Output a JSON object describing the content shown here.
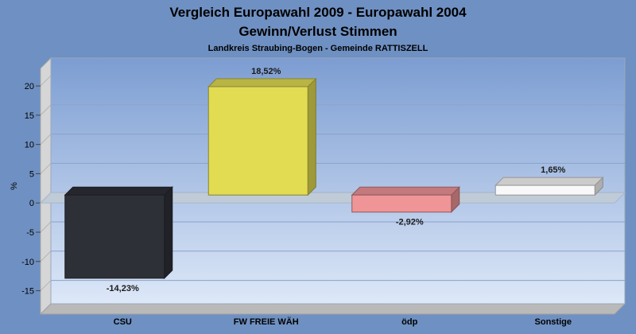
{
  "chart_data": {
    "type": "bar",
    "title": "Vergleich Europawahl 2009 - Europawahl 2004",
    "subtitle": "Gewinn/Verlust Stimmen",
    "subsubtitle": "Landkreis Straubing-Bogen - Gemeinde RATTISZELL",
    "ylabel": "%",
    "xlabel": "",
    "ylim": [
      -19,
      23
    ],
    "yticks": [
      20,
      15,
      10,
      5,
      0,
      -5,
      -10,
      -15
    ],
    "ytick_labels": [
      "20",
      "15",
      "10",
      "5",
      "0",
      "-5",
      "-10",
      "-15"
    ],
    "grid": true,
    "legend": "none",
    "categories": [
      "CSU",
      "FW FREIE WÄH",
      "ödp",
      "Sonstige"
    ],
    "values": [
      -14.23,
      18.52,
      -2.92,
      1.65
    ],
    "value_labels": [
      "-14,23%",
      "18,52%",
      "-2,92%",
      "1,65%"
    ],
    "colors": [
      "#2e3038",
      "#e1dc52",
      "#ef9597",
      "#f8f8f8"
    ],
    "background_color": "#6f90c2"
  }
}
